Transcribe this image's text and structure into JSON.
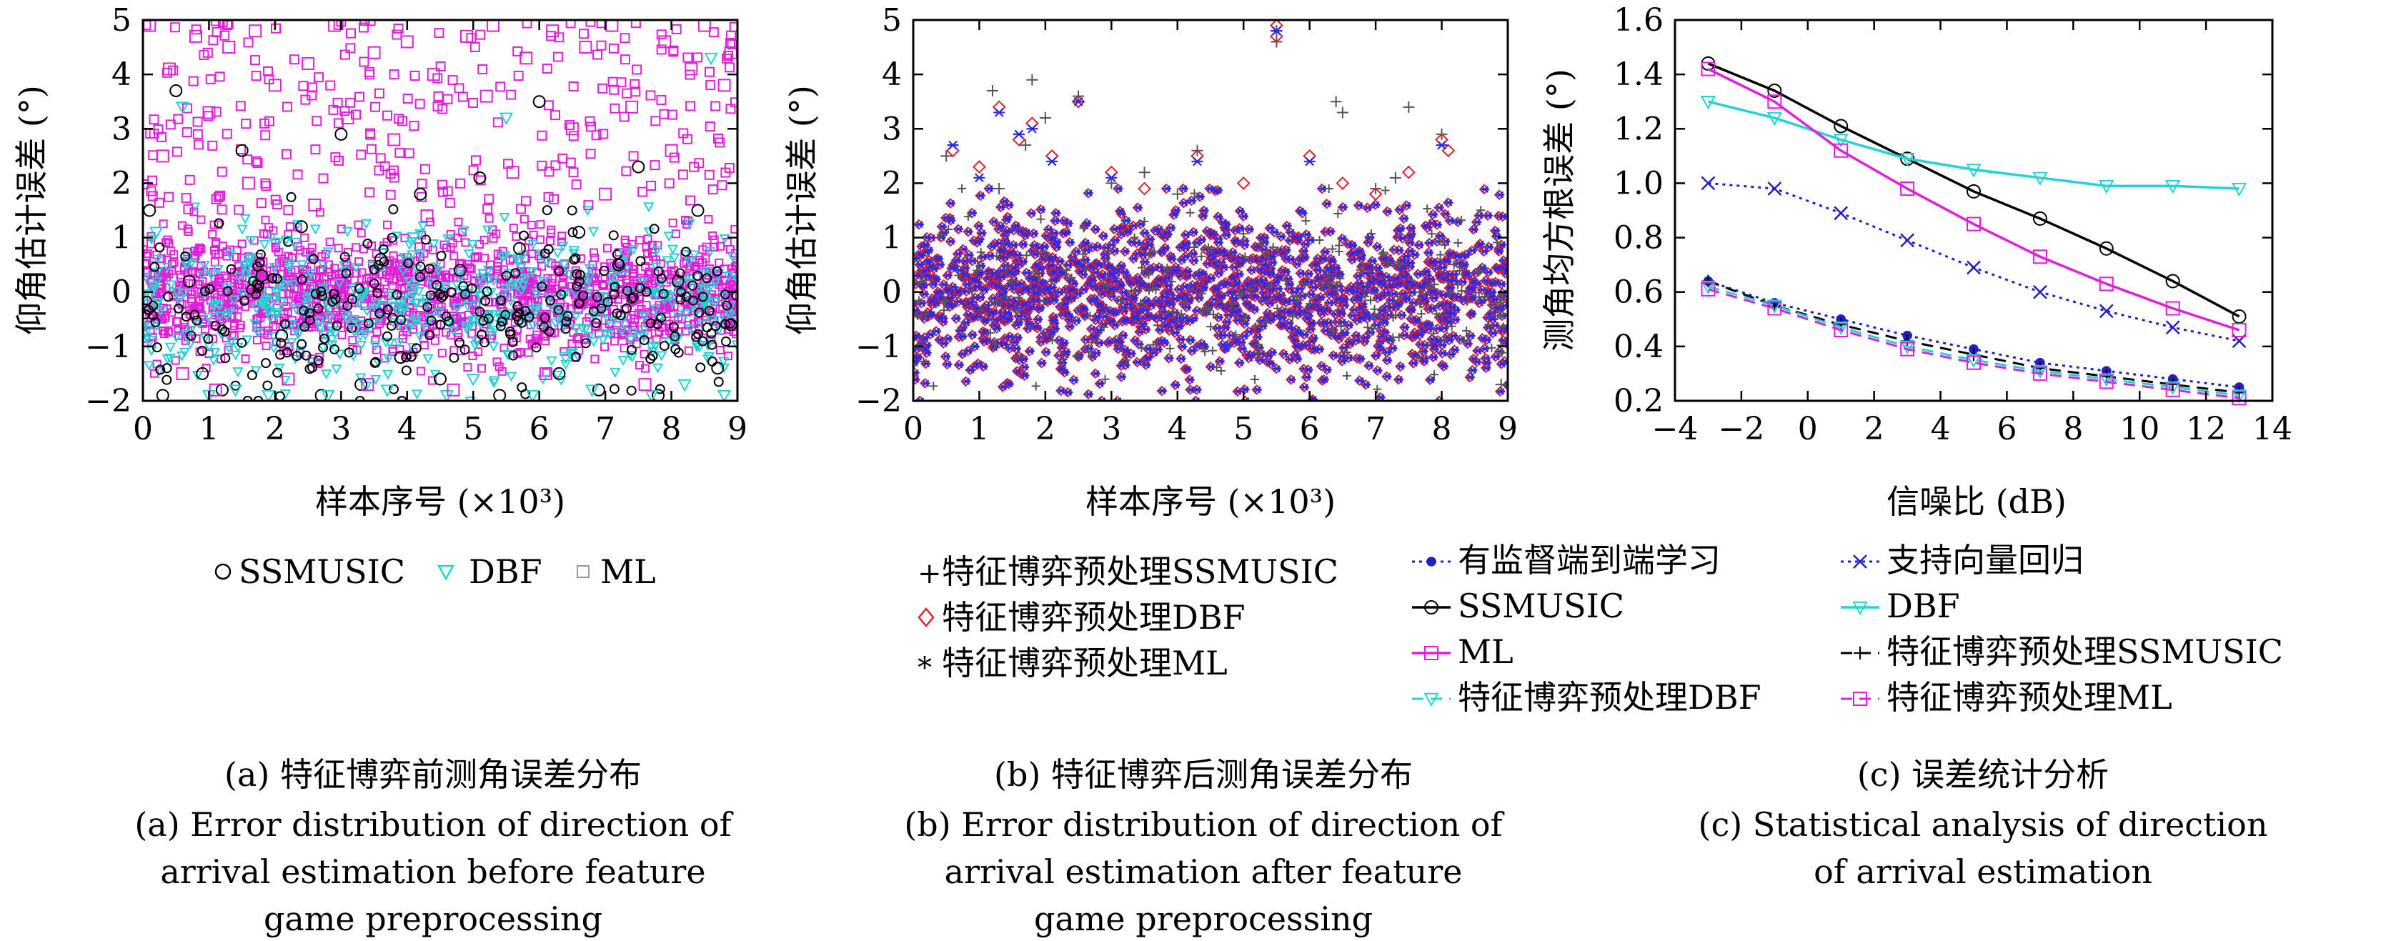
{
  "colors": {
    "ssmusic": "#000000",
    "dbf": "#22d3d3",
    "ml": "#e020d8",
    "fg_ssmusic": "#555555",
    "fg_dbf": "#e0202a",
    "fg_ml": "#2a2ae8",
    "supervised": "#2020c0",
    "svr": "#2020c0"
  },
  "panels": [
    {
      "id": "a",
      "ylabel": "仰角估计误差 (°)",
      "xlabel": "样本序号 (×10³)",
      "xticks": [
        "0",
        "1",
        "2",
        "3",
        "4",
        "5",
        "6",
        "7",
        "8",
        "9"
      ],
      "yticks": [
        "−2",
        "−1",
        "0",
        "1",
        "2",
        "3",
        "4",
        "5"
      ],
      "legend": [
        "SSMUSIC",
        "DBF",
        "ML"
      ],
      "caption_cn": "(a) 特征博弈前测角误差分布",
      "caption_en": [
        "(a) Error distribution of direction of",
        "arrival estimation before feature",
        "game preprocessing"
      ]
    },
    {
      "id": "b",
      "ylabel": "仰角估计误差 (°)",
      "xlabel": "样本序号 (×10³)",
      "xticks": [
        "0",
        "1",
        "2",
        "3",
        "4",
        "5",
        "6",
        "7",
        "8",
        "9"
      ],
      "yticks": [
        "−2",
        "−1",
        "0",
        "1",
        "2",
        "3",
        "4",
        "5"
      ],
      "legend": [
        "特征博弈预处理SSMUSIC",
        "特征博弈预处理DBF",
        "特征博弈预处理ML"
      ],
      "caption_cn": "(b) 特征博弈后测角误差分布",
      "caption_en": [
        "(b) Error distribution of direction of",
        "arrival estimation after feature",
        "game preprocessing"
      ]
    },
    {
      "id": "c",
      "ylabel": "测角均方根误差 (°)",
      "xlabel": "信噪比 (dB)",
      "xticks": [
        "−4",
        "−2",
        "0",
        "2",
        "4",
        "6",
        "8",
        "10",
        "12",
        "14"
      ],
      "yticks": [
        "0.2",
        "0.4",
        "0.6",
        "0.8",
        "1.0",
        "1.2",
        "1.4",
        "1.6"
      ],
      "legend": [
        "有监督端到端学习",
        "支持向量回归",
        "SSMUSIC",
        "DBF",
        "ML",
        "特征博弈预处理SSMUSIC",
        "特征博弈预处理DBF",
        "特征博弈预处理ML"
      ],
      "caption_cn": "(c) 误差统计分析",
      "caption_en": [
        "(c) Statistical analysis of direction",
        "of arrival estimation"
      ]
    }
  ],
  "chart_data": [
    {
      "type": "scatter",
      "xlabel": "样本序号 (×10³)",
      "ylabel": "仰角估计误差 (°)",
      "xlim": [
        0,
        9
      ],
      "ylim": [
        -2,
        5
      ],
      "series": [
        {
          "name": "SSMUSIC",
          "marker": "circle",
          "x": [
            0.1,
            0.3,
            0.5,
            0.7,
            0.9,
            1.2,
            1.5,
            1.8,
            2.1,
            2.4,
            2.7,
            3.0,
            3.3,
            3.6,
            3.9,
            4.2,
            4.5,
            4.8,
            5.1,
            5.4,
            5.7,
            6.0,
            6.3,
            6.6,
            6.9,
            7.2,
            7.5,
            7.8,
            8.1,
            8.4,
            8.7,
            8.9
          ],
          "y": [
            1.5,
            -1.9,
            3.7,
            0.2,
            -1.5,
            -1.8,
            2.6,
            0.3,
            -0.8,
            1.2,
            -1.9,
            2.9,
            -1.7,
            0.6,
            -1.2,
            1.8,
            -1.6,
            0.4,
            2.1,
            -1.9,
            0.8,
            3.5,
            -1.5,
            1.1,
            -1.8,
            0.5,
            2.3,
            -1.9,
            0.2,
            1.5,
            -1.4,
            -0.6
          ]
        },
        {
          "name": "DBF",
          "marker": "triangle-down",
          "x": [
            0.1,
            0.2,
            0.6,
            1.0,
            1.4,
            1.9,
            2.3,
            2.8,
            3.2,
            3.7,
            4.1,
            4.6,
            5.0,
            5.5,
            5.9,
            6.4,
            6.8,
            7.3,
            7.7,
            8.2,
            8.6,
            8.8
          ],
          "y": [
            -0.9,
            1.1,
            3.4,
            -1.9,
            -1.8,
            -1.9,
            0.9,
            -1.9,
            -0.7,
            -1.8,
            1.0,
            -1.9,
            -1.6,
            3.2,
            -1.9,
            -1.2,
            -1.8,
            0.7,
            -1.9,
            -1.7,
            4.3,
            -1.9
          ]
        },
        {
          "name": "ML",
          "marker": "square",
          "x": [
            0.1,
            0.3,
            0.4,
            0.6,
            0.8,
            1.0,
            1.1,
            1.3,
            1.6,
            1.7,
            2.0,
            2.2,
            2.5,
            2.6,
            2.9,
            3.1,
            3.4,
            3.5,
            3.8,
            4.0,
            4.3,
            4.4,
            4.7,
            4.9,
            5.2,
            5.3,
            5.6,
            5.8,
            6.1,
            6.2,
            6.5,
            6.7,
            7.0,
            7.1,
            7.4,
            7.6,
            7.9,
            8.0,
            8.3,
            8.5,
            8.8,
            8.9
          ],
          "y": [
            4.9,
            2.5,
            4.1,
            -1.5,
            4.7,
            3.3,
            -1.8,
            4.5,
            2.0,
            4.8,
            3.8,
            -1.6,
            4.2,
            1.6,
            4.9,
            3.2,
            -1.7,
            4.4,
            2.8,
            4.6,
            1.4,
            4.0,
            -1.8,
            4.7,
            3.6,
            4.9,
            2.2,
            4.3,
            -1.5,
            4.8,
            3.0,
            4.5,
            1.8,
            4.9,
            3.4,
            -1.7,
            4.6,
            2.6,
            4.1,
            4.9,
            3.8,
            4.4
          ]
        }
      ]
    },
    {
      "type": "scatter",
      "xlabel": "样本序号 (×10³)",
      "ylabel": "仰角估计误差 (°)",
      "xlim": [
        0,
        9
      ],
      "ylim": [
        -2,
        5
      ],
      "series": [
        {
          "name": "特征博弈预处理SSMUSIC",
          "marker": "plus",
          "x": [
            0.5,
            1.2,
            1.3,
            1.7,
            1.8,
            2.0,
            2.5,
            3.0,
            3.5,
            4.0,
            4.3,
            5.5,
            5.5,
            6.4,
            6.5,
            7.0,
            7.3,
            7.5,
            8.0,
            8.9
          ],
          "y": [
            2.5,
            3.7,
            1.9,
            2.7,
            3.9,
            3.2,
            3.6,
            2.0,
            2.2,
            1.8,
            2.6,
            4.8,
            4.6,
            3.5,
            3.3,
            1.9,
            2.1,
            3.4,
            2.9,
            -1.7
          ]
        },
        {
          "name": "特征博弈预处理DBF",
          "marker": "diamond",
          "x": [
            0.6,
            1.0,
            1.3,
            1.6,
            1.8,
            2.1,
            2.5,
            3.0,
            3.5,
            4.3,
            5.0,
            5.5,
            5.5,
            6.0,
            6.5,
            7.0,
            7.5,
            8.0,
            8.1
          ],
          "y": [
            2.6,
            2.3,
            3.4,
            2.8,
            3.1,
            2.5,
            3.5,
            2.2,
            1.9,
            2.5,
            2.0,
            4.9,
            4.7,
            2.5,
            2.0,
            1.8,
            2.2,
            2.8,
            2.6
          ]
        },
        {
          "name": "特征博弈预处理ML",
          "marker": "asterisk",
          "x": [
            0.6,
            1.0,
            1.3,
            1.6,
            1.8,
            2.1,
            2.5,
            3.0,
            4.3,
            5.5,
            6.0,
            8.0
          ],
          "y": [
            2.7,
            2.1,
            3.3,
            2.9,
            3.0,
            2.4,
            3.5,
            2.1,
            2.4,
            4.8,
            2.4,
            2.7
          ]
        }
      ]
    },
    {
      "type": "line",
      "xlabel": "信噪比 (dB)",
      "ylabel": "测角均方根误差 (°)",
      "xlim": [
        -4,
        14
      ],
      "ylim": [
        0.2,
        1.6
      ],
      "x": [
        -3,
        -1,
        1,
        3,
        5,
        7,
        9,
        11,
        13
      ],
      "series": [
        {
          "name": "有监督端到端学习",
          "values": [
            0.64,
            0.56,
            0.5,
            0.44,
            0.39,
            0.34,
            0.31,
            0.28,
            0.25
          ]
        },
        {
          "name": "支持向量回归",
          "values": [
            1.0,
            0.98,
            0.89,
            0.79,
            0.69,
            0.6,
            0.53,
            0.47,
            0.42
          ]
        },
        {
          "name": "SSMUSIC",
          "values": [
            1.44,
            1.34,
            1.21,
            1.09,
            0.97,
            0.87,
            0.76,
            0.64,
            0.51
          ]
        },
        {
          "name": "DBF",
          "values": [
            1.3,
            1.24,
            1.16,
            1.09,
            1.05,
            1.02,
            0.99,
            0.99,
            0.98
          ]
        },
        {
          "name": "ML",
          "values": [
            1.42,
            1.3,
            1.12,
            0.98,
            0.85,
            0.73,
            0.63,
            0.54,
            0.46
          ]
        },
        {
          "name": "特征博弈预处理SSMUSIC",
          "values": [
            0.64,
            0.55,
            0.48,
            0.42,
            0.37,
            0.32,
            0.29,
            0.26,
            0.23
          ]
        },
        {
          "name": "特征博弈预处理DBF",
          "values": [
            0.62,
            0.55,
            0.47,
            0.4,
            0.35,
            0.31,
            0.28,
            0.25,
            0.22
          ]
        },
        {
          "name": "特征博弈预处理ML",
          "values": [
            0.61,
            0.54,
            0.46,
            0.39,
            0.34,
            0.3,
            0.27,
            0.24,
            0.21
          ]
        }
      ]
    }
  ]
}
